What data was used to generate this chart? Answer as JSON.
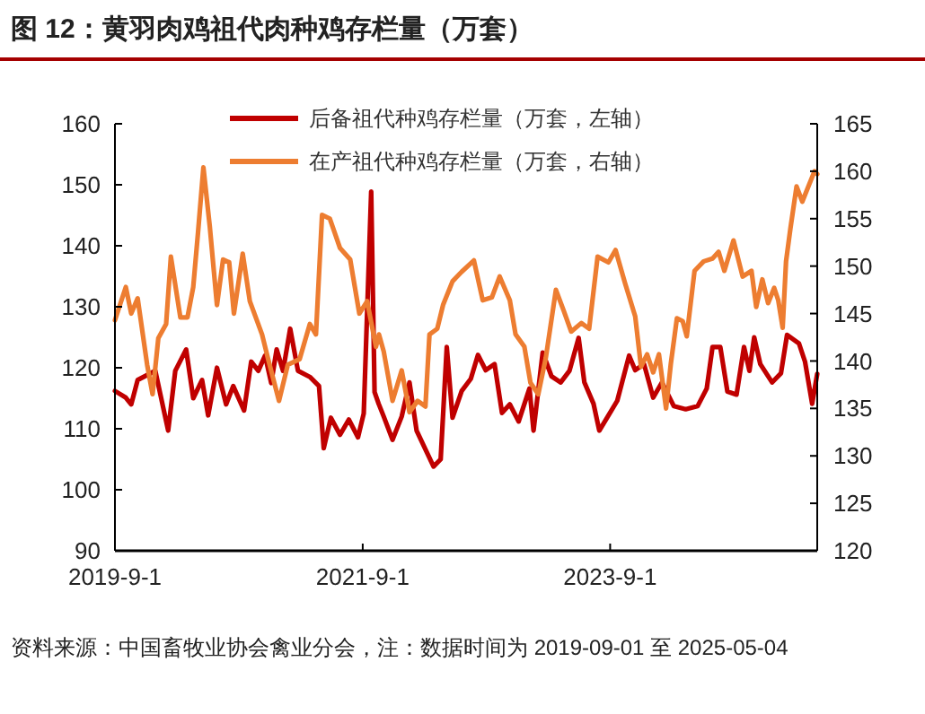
{
  "chart_data": {
    "type": "line",
    "title": "图 12：黄羽肉鸡祖代肉种鸡存栏量（万套）",
    "annotations": [
      "资料来源：中国畜牧业协会禽业分会，注：数据时间为 2019-09-01 至 2025-05-04"
    ],
    "xlim": [
      "2019-09-01",
      "2025-05-04"
    ],
    "xticks": [
      {
        "value": "2019-09-01",
        "label": "2019-9-1"
      },
      {
        "value": "2021-09-01",
        "label": "2021-9-1"
      },
      {
        "value": "2023-09-01",
        "label": "2023-9-1"
      }
    ],
    "ylim": [
      90,
      160
    ],
    "yticks": [
      90,
      100,
      110,
      120,
      130,
      140,
      150,
      160
    ],
    "y2lim": [
      120,
      165
    ],
    "y2ticks": [
      120,
      125,
      130,
      135,
      140,
      145,
      150,
      155,
      160,
      165
    ],
    "grid": false,
    "legend": "top",
    "line_style": "solid",
    "marker": "none",
    "series": [
      {
        "name": "后备祖代种鸡存栏量（万套，左轴）",
        "color": "#c00000",
        "axis": "y",
        "x": [
          "2019-09-01",
          "2019-10-03",
          "2019-10-19",
          "2019-11-07",
          "2019-12-29",
          "2020-02-05",
          "2020-02-26",
          "2020-03-29",
          "2020-04-19",
          "2020-05-15",
          "2020-06-02",
          "2020-06-28",
          "2020-07-25",
          "2020-08-15",
          "2020-09-16",
          "2020-10-07",
          "2020-10-28",
          "2020-11-17",
          "2020-12-05",
          "2020-12-21",
          "2021-01-09",
          "2021-01-30",
          "2021-02-22",
          "2021-03-29",
          "2021-04-25",
          "2021-05-09",
          "2021-05-30",
          "2021-06-26",
          "2021-07-22",
          "2021-08-18",
          "2021-09-04",
          "2021-09-26",
          "2021-10-06",
          "2021-10-18",
          "2021-11-02",
          "2021-11-28",
          "2021-12-25",
          "2022-01-17",
          "2022-02-07",
          "2022-03-29",
          "2022-04-19",
          "2022-05-07",
          "2022-05-24",
          "2022-06-20",
          "2022-07-17",
          "2022-08-07",
          "2022-08-30",
          "2022-09-25",
          "2022-10-17",
          "2022-11-09",
          "2022-12-05",
          "2023-01-06",
          "2023-01-18",
          "2023-02-14",
          "2023-03-12",
          "2023-04-08",
          "2023-05-04",
          "2023-05-31",
          "2023-06-17",
          "2023-07-14",
          "2023-07-31",
          "2023-08-27",
          "2023-09-22",
          "2023-10-27",
          "2023-11-14",
          "2023-12-10",
          "2024-01-06",
          "2024-02-01",
          "2024-03-07",
          "2024-04-11",
          "2024-05-16",
          "2024-06-12",
          "2024-06-29",
          "2024-07-22",
          "2024-08-12",
          "2024-09-08",
          "2024-09-30",
          "2024-10-16",
          "2024-10-30",
          "2024-11-17",
          "2024-12-22",
          "2025-01-17",
          "2025-02-04",
          "2025-03-11",
          "2025-03-29",
          "2025-04-19",
          "2025-05-04"
        ],
        "values": [
          116.2,
          115.1,
          114,
          118,
          119.5,
          109.7,
          119.5,
          123,
          115,
          118,
          112.2,
          120,
          114,
          117,
          113,
          121,
          119.5,
          122,
          117.5,
          123,
          119.5,
          126.4,
          119.5,
          118.5,
          117,
          106.8,
          111.8,
          109,
          111.5,
          108.6,
          112.5,
          148.9,
          116,
          114.1,
          112,
          108.2,
          112,
          117.6,
          109.7,
          103.8,
          105,
          123.4,
          111.8,
          116.2,
          118.2,
          122.1,
          119.6,
          120.6,
          112.6,
          114,
          111.2,
          116.6,
          109.7,
          122.5,
          118.6,
          117.6,
          119.5,
          124.9,
          117.6,
          114.1,
          109.7,
          112.2,
          114.6,
          122,
          119.6,
          120.6,
          115.1,
          117.6,
          113.7,
          113.2,
          113.7,
          116.6,
          123.4,
          123.4,
          116.1,
          115.6,
          123.4,
          119.5,
          125,
          120.6,
          117.6,
          119.1,
          125.4,
          124,
          121,
          114.1,
          119
        ]
      },
      {
        "name": "在产祖代种鸡存栏量（万套，右轴）",
        "color": "#ed7d31",
        "axis": "y2",
        "x": [
          "2019-09-01",
          "2019-10-03",
          "2019-10-19",
          "2019-11-07",
          "2019-12-05",
          "2019-12-21",
          "2020-01-07",
          "2020-01-30",
          "2020-02-13",
          "2020-03-12",
          "2020-04-02",
          "2020-04-19",
          "2020-05-03",
          "2020-05-19",
          "2020-06-07",
          "2020-06-28",
          "2020-07-16",
          "2020-08-03",
          "2020-08-17",
          "2020-09-12",
          "2020-10-03",
          "2020-11-08",
          "2020-11-26",
          "2020-12-28",
          "2021-01-23",
          "2021-02-27",
          "2021-03-29",
          "2021-04-16",
          "2021-05-04",
          "2021-05-27",
          "2021-06-26",
          "2021-07-26",
          "2021-08-22",
          "2021-09-14",
          "2021-10-10",
          "2021-10-19",
          "2021-11-02",
          "2021-11-28",
          "2021-12-25",
          "2022-01-17",
          "2022-02-10",
          "2022-03-05",
          "2022-03-17",
          "2022-04-09",
          "2022-04-26",
          "2022-05-24",
          "2022-06-20",
          "2022-07-26",
          "2022-08-21",
          "2022-09-17",
          "2022-10-10",
          "2022-11-09",
          "2022-11-26",
          "2022-12-22",
          "2023-01-09",
          "2023-02-01",
          "2023-02-23",
          "2023-03-25",
          "2023-04-17",
          "2023-05-09",
          "2023-06-08",
          "2023-07-01",
          "2023-07-26",
          "2023-08-27",
          "2023-09-17",
          "2023-10-15",
          "2023-11-14",
          "2023-12-01",
          "2023-12-19",
          "2024-01-06",
          "2024-01-23",
          "2024-02-13",
          "2024-02-27",
          "2024-03-16",
          "2024-04-02",
          "2024-04-14",
          "2024-05-07",
          "2024-06-03",
          "2024-06-29",
          "2024-07-17",
          "2024-08-03",
          "2024-08-30",
          "2024-09-26",
          "2024-10-22",
          "2024-11-05",
          "2024-11-23",
          "2024-12-10",
          "2024-12-28",
          "2025-01-09",
          "2025-01-22",
          "2025-02-01",
          "2025-02-14",
          "2025-03-04",
          "2025-03-21",
          "2025-04-08",
          "2025-04-26",
          "2025-05-04"
        ],
        "values": [
          144.3,
          147.8,
          145,
          146.6,
          139.6,
          136.5,
          142.4,
          143.9,
          151,
          144.6,
          144.6,
          147.8,
          153.5,
          160.4,
          154.1,
          145.9,
          150.7,
          150.4,
          145,
          151.3,
          146.3,
          142.8,
          140.2,
          135.8,
          139.6,
          140.2,
          143.9,
          142.8,
          155.4,
          155,
          151.9,
          150.7,
          145,
          146.3,
          141.5,
          142.8,
          141,
          135.8,
          139,
          134.6,
          135.8,
          135.2,
          142.8,
          143.4,
          145.9,
          148.4,
          149.4,
          150.6,
          146.4,
          146.7,
          148.9,
          146.4,
          142.8,
          141.5,
          137.7,
          136.5,
          140.3,
          147.5,
          145.3,
          143.1,
          144,
          143.4,
          151,
          150.4,
          151.7,
          148.2,
          144.7,
          139.4,
          140.7,
          138.8,
          140.7,
          135,
          139.7,
          144.5,
          144.2,
          142.6,
          149.5,
          150.5,
          150.8,
          151.5,
          149.5,
          152.7,
          148.9,
          149.5,
          145.7,
          148.6,
          146.1,
          147.7,
          146.4,
          143.5,
          150.5,
          154,
          158.4,
          156.8,
          158.4,
          160,
          159.7
        ]
      }
    ]
  }
}
